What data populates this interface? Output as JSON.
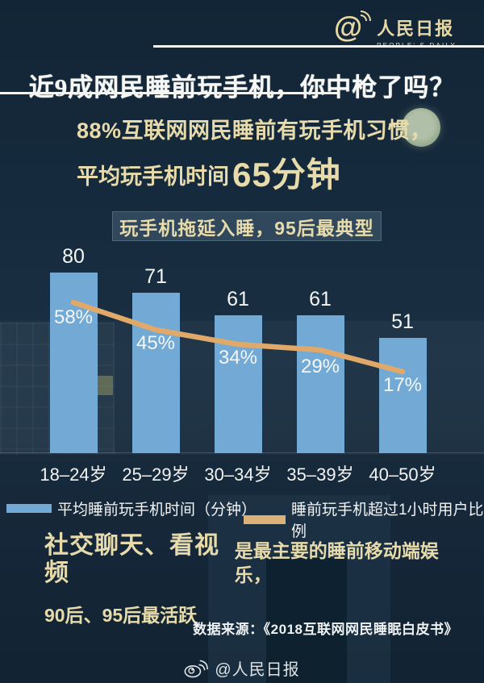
{
  "header": {
    "logo_at": "@",
    "logo_title": "人民日报",
    "logo_subtitle": "PEOPLE' S DAILY"
  },
  "title": "近9成网民睡前玩手机，你中枪了吗？",
  "intro": {
    "line1": "88%互联网网民睡前有玩手机习惯，",
    "line2_prefix": "平均玩手机时间",
    "line2_big": "65分钟"
  },
  "badge": "玩手机拖延入睡，95后最典型",
  "chart_data": {
    "type": "bar",
    "title": "玩手机拖延入睡，95后最典型",
    "categories": [
      "18–24岁",
      "25–29岁",
      "30–34岁",
      "35–39岁",
      "40–50岁"
    ],
    "series": [
      {
        "name": "平均睡前玩手机时间（分钟）",
        "type": "bar",
        "color": "#73aad5",
        "values": [
          80,
          71,
          61,
          61,
          51
        ]
      },
      {
        "name": "睡前玩手机超过1小时用户比例",
        "type": "line",
        "color": "#e0a969",
        "values_percent": [
          58,
          45,
          34,
          29,
          17
        ],
        "labels": [
          "58%",
          "45%",
          "34%",
          "29%",
          "17%"
        ]
      }
    ],
    "ylim": [
      0,
      90
    ],
    "grid": false,
    "legend_position": "bottom"
  },
  "legend": {
    "items": [
      {
        "label": "平均睡前玩手机时间（分钟）",
        "color": "#73aad5"
      },
      {
        "label": "睡前玩手机超过1小时用户比例",
        "color": "#dcb178"
      }
    ]
  },
  "conclusion": {
    "highlight": "社交聊天、看视频",
    "rest": "是最主要的睡前移动端娱乐，",
    "line2": "90后、95后最活跃"
  },
  "source": "数据来源：《2018互联网网民睡眠白皮书》",
  "footer": {
    "weibo_handle": "@人民日报"
  },
  "colors": {
    "background": "#15293b",
    "cream": "#e7dbab",
    "bar_blue": "#73aad5",
    "line_orange": "#e0a969",
    "white": "#f4f6f6",
    "badge_bg": "#31485c"
  }
}
